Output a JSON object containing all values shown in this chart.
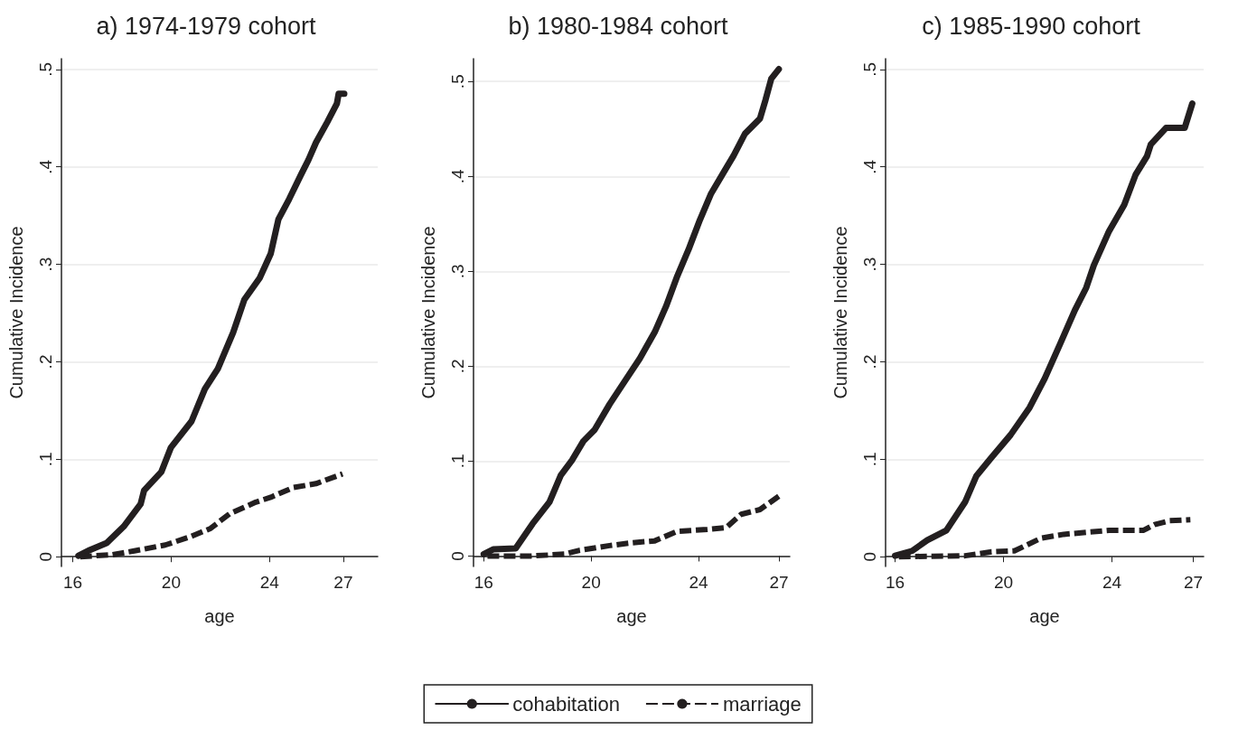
{
  "chart_data": [
    {
      "type": "line",
      "title": "a) 1974-1979 cohort",
      "xlabel": "age",
      "ylabel": "Cumulative Incidence",
      "xlim": [
        15.54,
        28.4
      ],
      "xticks": [
        16,
        20,
        24,
        27
      ],
      "ylim": [
        -0.01,
        0.511
      ],
      "yticks": [
        {
          "value": 0,
          "label": "0"
        },
        {
          "value": 0.1,
          "label": ".1"
        },
        {
          "value": 0.2,
          "label": ".2"
        },
        {
          "value": 0.3,
          "label": ".3"
        },
        {
          "value": 0.4,
          "label": ".4"
        },
        {
          "value": 0.5,
          "label": ".5"
        }
      ],
      "grid": "y",
      "legend": false,
      "marker": "none",
      "series": [
        {
          "color": "#231f20",
          "line_style": "solid",
          "x": [
            16.23,
            16.7,
            17.38,
            18.07,
            18.76,
            18.9,
            19.6,
            19.99,
            20.83,
            21.37,
            21.9,
            22.52,
            22.98,
            23.6,
            24.05,
            24.36,
            24.8,
            25.28,
            25.58,
            25.89,
            26.35,
            26.74,
            26.81,
            27.04
          ],
          "values": [
            0.001,
            0.007,
            0.014,
            0.031,
            0.054,
            0.068,
            0.087,
            0.112,
            0.139,
            0.172,
            0.193,
            0.23,
            0.264,
            0.286,
            0.311,
            0.346,
            0.367,
            0.392,
            0.407,
            0.425,
            0.446,
            0.465,
            0.475,
            0.475
          ]
        },
        {
          "color": "#231f20",
          "line_style": "dashed",
          "x": [
            16.3,
            17.6,
            18.5,
            19.76,
            20.83,
            21.6,
            22.37,
            23.44,
            24.05,
            24.97,
            25.89,
            26.97
          ],
          "values": [
            0,
            0.002,
            0.006,
            0.012,
            0.021,
            0.029,
            0.044,
            0.056,
            0.061,
            0.071,
            0.075,
            0.085
          ]
        }
      ]
    },
    {
      "type": "line",
      "title": "b) 1980-1984 cohort",
      "xlabel": "age",
      "ylabel": "Cumulative Incidence",
      "xlim": [
        15.62,
        27.4
      ],
      "xticks": [
        16,
        20,
        24,
        27
      ],
      "ylim": [
        -0.011,
        0.524
      ],
      "yticks": [
        {
          "value": 0,
          "label": "0"
        },
        {
          "value": 0.1,
          "label": ".1"
        },
        {
          "value": 0.2,
          "label": ".2"
        },
        {
          "value": 0.3,
          "label": ".3"
        },
        {
          "value": 0.4,
          "label": ".4"
        },
        {
          "value": 0.5,
          "label": ".5"
        }
      ],
      "grid": "y",
      "legend": "bottom",
      "marker": "none",
      "series": [
        {
          "name": "cohabitation",
          "color": "#231f20",
          "line_style": "solid",
          "x": [
            16,
            16.35,
            17.19,
            17.82,
            18.45,
            18.87,
            19.29,
            19.71,
            20.13,
            20.69,
            21.25,
            21.81,
            22.37,
            22.79,
            23.21,
            23.63,
            24.05,
            24.47,
            24.89,
            25.31,
            25.73,
            26.29,
            26.5,
            26.71,
            26.99
          ],
          "values": [
            0.002,
            0.007,
            0.008,
            0.034,
            0.057,
            0.085,
            0.101,
            0.121,
            0.133,
            0.16,
            0.184,
            0.208,
            0.236,
            0.263,
            0.295,
            0.323,
            0.354,
            0.382,
            0.402,
            0.422,
            0.445,
            0.461,
            0.481,
            0.503,
            0.513
          ]
        },
        {
          "name": "marriage",
          "color": "#231f20",
          "line_style": "dashed",
          "x": [
            16.14,
            17.75,
            19.01,
            19.57,
            20.69,
            21.53,
            22.37,
            23.21,
            24.33,
            25.03,
            25.59,
            26.29,
            26.99
          ],
          "values": [
            0,
            0,
            0.002,
            0.006,
            0.011,
            0.014,
            0.016,
            0.026,
            0.028,
            0.03,
            0.044,
            0.049,
            0.063
          ]
        }
      ]
    },
    {
      "type": "line",
      "title": "c) 1985-1990 cohort",
      "xlabel": "age",
      "ylabel": "Cumulative Incidence",
      "xlim": [
        15.65,
        27.38
      ],
      "xticks": [
        16,
        20,
        24,
        27
      ],
      "ylim": [
        -0.01,
        0.511
      ],
      "yticks": [
        {
          "value": 0,
          "label": "0"
        },
        {
          "value": 0.1,
          "label": ".1"
        },
        {
          "value": 0.2,
          "label": ".2"
        },
        {
          "value": 0.3,
          "label": ".3"
        },
        {
          "value": 0.4,
          "label": ".4"
        },
        {
          "value": 0.5,
          "label": ".5"
        }
      ],
      "grid": "y",
      "legend": false,
      "marker": "none",
      "series": [
        {
          "color": "#231f20",
          "line_style": "solid",
          "x": [
            16,
            16.63,
            17.19,
            17.89,
            18.58,
            19,
            19.56,
            20.26,
            20.96,
            21.52,
            22.08,
            22.63,
            23.05,
            23.33,
            23.89,
            24.45,
            24.87,
            25.29,
            25.43,
            25.99,
            26.68,
            26.96
          ],
          "values": [
            0.001,
            0.006,
            0.017,
            0.027,
            0.056,
            0.083,
            0.102,
            0.125,
            0.153,
            0.183,
            0.218,
            0.253,
            0.276,
            0.299,
            0.334,
            0.361,
            0.392,
            0.411,
            0.423,
            0.44,
            0.44,
            0.465
          ]
        },
        {
          "color": "#231f20",
          "line_style": "dashed",
          "x": [
            16.14,
            18.58,
            19.56,
            20.4,
            21.38,
            22.22,
            23.05,
            23.89,
            25.15,
            25.57,
            26.13,
            26.89
          ],
          "values": [
            0,
            0.001,
            0.005,
            0.006,
            0.019,
            0.023,
            0.025,
            0.027,
            0.027,
            0.033,
            0.037,
            0.038
          ]
        }
      ]
    }
  ]
}
